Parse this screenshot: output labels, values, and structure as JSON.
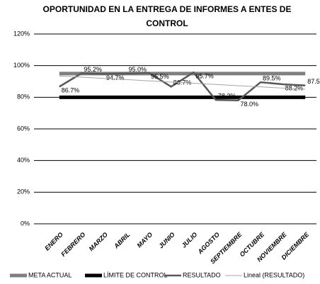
{
  "chart_data": {
    "type": "line",
    "title": "OPORTUNIDAD EN LA ENTREGA DE INFORMES A ENTES DE CONTROL",
    "categories": [
      "ENERO",
      "FEBRERO",
      "MARZO",
      "ABRIL",
      "MAYO",
      "JUNIO",
      "JULIO",
      "AGOSTO",
      "SEPTIEMBRE",
      "OCTUBRE",
      "NOVIEMBRE",
      "DICIEMBRE"
    ],
    "series": [
      {
        "name": "META ACTUAL",
        "color": "#7f7f7f",
        "values": [
          95,
          95,
          95,
          95,
          95,
          95,
          95,
          95,
          95,
          95,
          95,
          95
        ]
      },
      {
        "name": "LÍMITE DE CONTROL",
        "color": "#000000",
        "values": [
          80,
          80,
          80,
          80,
          80,
          80,
          80,
          80,
          80,
          80,
          80,
          80
        ]
      },
      {
        "name": "RESULTADO",
        "color": "#595959",
        "values": [
          86.7,
          95.2,
          94.7,
          95.0,
          95.5,
          86.7,
          95.7,
          78.3,
          78.0,
          89.5,
          88.2,
          87.5
        ],
        "value_labels": [
          "86.7%",
          "95.2%",
          "94.7%",
          "95.0%",
          "95.5%",
          "86.7%",
          "95.7%",
          "78.3%",
          "78.0%",
          "89.5%",
          "88.2%",
          "87.5%"
        ]
      },
      {
        "name": "Lineal (RESULTADO)",
        "color": "#a6a6a6",
        "values": [
          93.4,
          92.7,
          91.9,
          91.2,
          90.4,
          89.6,
          88.9,
          88.1,
          87.3,
          86.6,
          85.8,
          85.1
        ]
      }
    ],
    "ylim": [
      0,
      120
    ],
    "yticks": [
      {
        "value": 0,
        "label": "0%"
      },
      {
        "value": 20,
        "label": "20%"
      },
      {
        "value": 40,
        "label": "40%"
      },
      {
        "value": 60,
        "label": "60%"
      },
      {
        "value": 80,
        "label": "80%"
      },
      {
        "value": 100,
        "label": "100%"
      },
      {
        "value": 120,
        "label": "120%"
      }
    ],
    "grid": true
  }
}
